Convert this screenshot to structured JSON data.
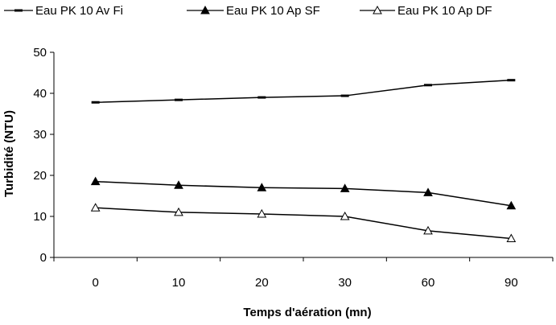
{
  "chart_data": {
    "type": "line",
    "title": "",
    "xlabel": "Temps d'aération (mn)",
    "ylabel": "Turbidité (NTU)",
    "categories": [
      "0",
      "10",
      "20",
      "30",
      "60",
      "90"
    ],
    "ylim": [
      0,
      50
    ],
    "yticks": [
      "0",
      "10",
      "20",
      "30",
      "40",
      "50"
    ],
    "grid": false,
    "legend_position": "top",
    "series": [
      {
        "name": "Eau PK 10 Av Fi",
        "marker": "dash",
        "color": "#000000",
        "values": [
          37.8,
          38.4,
          39.0,
          39.4,
          42.0,
          43.2
        ]
      },
      {
        "name": "Eau PK 10 Ap SF",
        "marker": "filled-triangle",
        "color": "#000000",
        "values": [
          18.5,
          17.6,
          17.0,
          16.8,
          15.8,
          12.6
        ]
      },
      {
        "name": "Eau PK 10 Ap DF",
        "marker": "open-triangle",
        "color": "#000000",
        "values": [
          12.1,
          11.0,
          10.6,
          10.0,
          6.5,
          4.6
        ]
      }
    ]
  }
}
